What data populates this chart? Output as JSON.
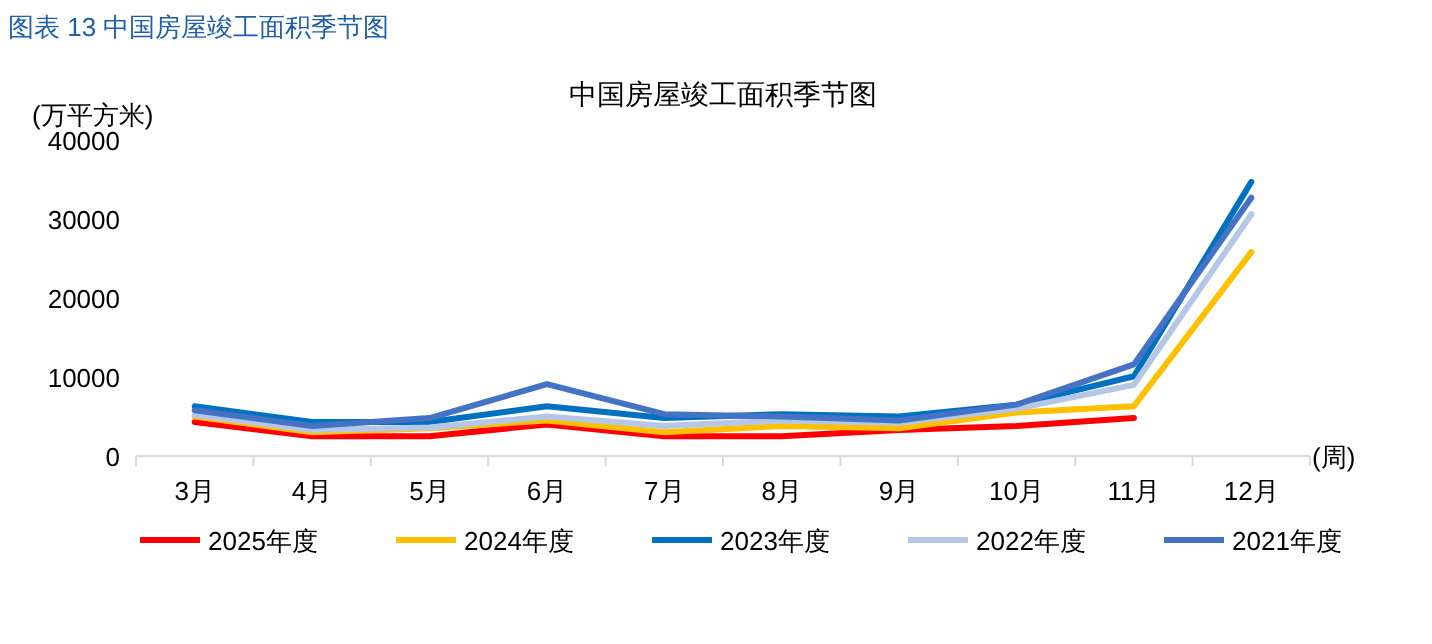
{
  "chart_data": {
    "type": "line",
    "title": "中国房屋竣工面积季节图",
    "ylabel": "(万平方米)",
    "xlabel": "(周)",
    "annotations": [
      "图表 13 中国房屋竣工面积季节图"
    ],
    "categories": [
      "3月",
      "4月",
      "5月",
      "6月",
      "7月",
      "8月",
      "9月",
      "10月",
      "11月",
      "12月"
    ],
    "ylim": [
      0,
      40000
    ],
    "yticks": [
      0,
      10000,
      20000,
      30000,
      40000
    ],
    "grid": false,
    "legend": "bottom",
    "marker": "none",
    "series": [
      {
        "name": "2025年度",
        "color": "#ff0000",
        "values": [
          4300,
          2500,
          2500,
          4000,
          2500,
          2500,
          3300,
          3800,
          4800,
          null
        ]
      },
      {
        "name": "2024年度",
        "color": "#ffc000",
        "values": [
          5000,
          3000,
          3500,
          4500,
          3000,
          3800,
          3500,
          5500,
          6300,
          25800
        ]
      },
      {
        "name": "2023年度",
        "color": "#0070c0",
        "values": [
          6300,
          4300,
          4300,
          6300,
          4800,
          5300,
          5000,
          6500,
          10100,
          34700
        ]
      },
      {
        "name": "2022年度",
        "color": "#b4c7e7",
        "values": [
          5200,
          3300,
          3600,
          5000,
          3800,
          4500,
          4200,
          6000,
          9000,
          30600
        ]
      },
      {
        "name": "2021年度",
        "color": "#4472c4",
        "values": [
          5800,
          3800,
          4800,
          9100,
          5300,
          5000,
          4500,
          6500,
          11600,
          32700
        ]
      }
    ]
  }
}
